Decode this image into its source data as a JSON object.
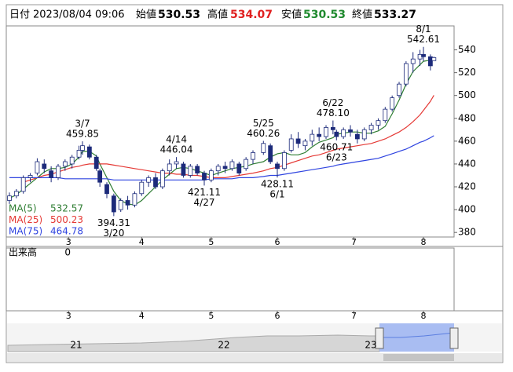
{
  "header": {
    "date_label": "日付",
    "datetime": "2023/08/04 09:06",
    "open_label": "始値",
    "high_label": "高値",
    "low_label": "安値",
    "close_label": "終値"
  },
  "chart_data": {
    "type": "candlestick",
    "x": [
      0,
      2,
      4,
      6,
      8,
      10,
      12,
      14,
      16,
      18,
      20,
      21,
      23,
      25,
      26,
      28,
      30,
      32,
      34,
      36,
      38,
      40,
      42,
      44,
      46,
      48,
      50,
      52,
      54,
      56,
      58,
      60,
      62,
      64,
      66,
      68,
      70,
      73,
      75,
      77,
      79,
      81,
      83,
      85,
      87,
      89,
      91,
      93,
      94,
      96,
      98,
      100,
      102,
      104,
      106,
      108,
      110,
      112,
      114,
      116,
      118,
      119,
      121,
      122
    ],
    "open": [
      408,
      412,
      416,
      428,
      432,
      440,
      434,
      428,
      438,
      440,
      446,
      452,
      455,
      446,
      434,
      422,
      412,
      400,
      408,
      404,
      414,
      424,
      428,
      420,
      434,
      440,
      440,
      430,
      438,
      432,
      426,
      434,
      438,
      436,
      440,
      436,
      444,
      450,
      456,
      440,
      436,
      452,
      462,
      456,
      460,
      466,
      464,
      472,
      468,
      464,
      470,
      466,
      462,
      470,
      474,
      478,
      488,
      500,
      510,
      528,
      532,
      536,
      534,
      530.53
    ],
    "high": [
      415,
      418,
      430,
      432,
      445,
      444,
      438,
      440,
      444,
      448,
      456,
      459.85,
      457,
      448,
      436,
      424,
      414,
      410,
      412,
      416,
      426,
      430,
      432,
      436,
      444,
      446.04,
      442,
      440,
      440,
      434,
      436,
      440,
      442,
      444,
      442,
      446,
      452,
      460.26,
      458,
      442,
      452,
      466,
      468,
      462,
      470,
      472,
      474,
      478.1,
      470,
      472,
      474,
      470,
      472,
      476,
      480,
      490,
      500,
      512,
      530,
      538,
      540,
      542.61,
      536,
      534.07
    ],
    "low": [
      405,
      410,
      414,
      424,
      430,
      432,
      424,
      426,
      434,
      436,
      444,
      448,
      444,
      434,
      420,
      410,
      394.31,
      398,
      400,
      402,
      412,
      420,
      418,
      418,
      430,
      436,
      428,
      428,
      430,
      421.11,
      424,
      430,
      432,
      434,
      430,
      434,
      440,
      448,
      440,
      428.11,
      434,
      450,
      454,
      452,
      456,
      460,
      462,
      466,
      460.71,
      462,
      464,
      458,
      460,
      466,
      470,
      476,
      486,
      498,
      508,
      520,
      526,
      530,
      522,
      530.53
    ],
    "close": [
      412,
      416,
      428,
      430,
      442,
      436,
      428,
      438,
      442,
      446,
      452,
      456,
      446,
      436,
      424,
      414,
      398,
      408,
      404,
      414,
      424,
      428,
      420,
      434,
      440,
      442,
      430,
      438,
      432,
      426,
      434,
      438,
      436,
      442,
      432,
      444,
      450,
      458,
      442,
      436,
      450,
      462,
      458,
      460,
      466,
      464,
      472,
      470,
      464,
      470,
      468,
      462,
      470,
      474,
      478,
      488,
      498,
      510,
      528,
      532,
      536,
      534,
      526,
      533.27
    ],
    "up_color": "#ffffff",
    "down_color": "#1c2a7a",
    "edge_color": "#1c2a7a",
    "series": [
      {
        "name": "MA(5)",
        "color": "#2e7d32",
        "values": [
          410,
          413,
          418,
          423,
          428,
          433,
          436,
          436,
          437,
          440,
          446,
          451,
          451,
          447,
          440,
          428,
          416,
          408,
          405,
          404,
          408,
          414,
          420,
          426,
          431,
          436,
          437,
          436,
          434,
          432,
          430,
          432,
          434,
          436,
          437,
          438,
          440,
          442,
          446,
          449,
          450,
          448,
          448,
          450,
          455,
          459,
          461,
          463,
          466,
          467,
          468,
          468,
          467,
          467,
          469,
          473,
          484,
          496,
          510,
          521,
          527,
          530,
          531,
          532.57
        ]
      },
      {
        "name": "MA(25)",
        "color": "#e53935",
        "values": [
          null,
          null,
          424,
          426,
          428,
          430,
          431,
          433,
          435,
          437,
          438,
          439,
          440,
          440,
          440,
          440,
          439,
          438,
          437,
          436,
          435,
          434,
          433,
          432,
          432,
          431,
          431,
          430,
          430,
          429,
          428,
          428,
          428,
          429,
          430,
          431,
          432,
          434,
          436,
          437,
          439,
          441,
          443,
          445,
          447,
          448,
          450,
          452,
          453,
          454,
          455,
          456,
          457,
          458,
          460,
          462,
          465,
          468,
          472,
          477,
          483,
          487,
          495,
          500.23
        ]
      },
      {
        "name": "MA(75)",
        "color": "#2f44e0",
        "values": [
          428,
          428,
          428,
          428,
          428,
          428,
          428,
          428,
          427,
          427,
          427,
          427,
          427,
          427,
          427,
          427,
          426,
          426,
          426,
          426,
          426,
          426,
          426,
          426,
          426,
          426,
          426,
          426,
          426,
          426,
          427,
          427,
          427,
          427,
          428,
          428,
          428,
          429,
          430,
          430,
          431,
          432,
          433,
          434,
          435,
          436,
          437,
          438,
          439,
          440,
          441,
          442,
          443,
          444,
          445,
          447,
          449,
          451,
          453,
          456,
          459,
          460,
          463,
          464.78
        ]
      }
    ],
    "annotations": [
      {
        "date": "3/7",
        "value": 459.85,
        "x": 21,
        "pos": "above"
      },
      {
        "date": "3/20",
        "value": 394.31,
        "x": 30,
        "pos": "below"
      },
      {
        "date": "4/14",
        "value": 446.04,
        "x": 48,
        "pos": "above"
      },
      {
        "date": "4/27",
        "value": 421.11,
        "x": 56,
        "pos": "below"
      },
      {
        "date": "5/25",
        "value": 460.26,
        "x": 73,
        "pos": "above"
      },
      {
        "date": "6/1",
        "value": 428.11,
        "x": 77,
        "pos": "below"
      },
      {
        "date": "6/22",
        "value": 478.1,
        "label": "478.10",
        "x": 93,
        "pos": "above"
      },
      {
        "date": "6/23",
        "value": 460.71,
        "x": 94,
        "pos": "below"
      },
      {
        "date": "8/1",
        "value": 542.61,
        "x": 119,
        "pos": "above"
      }
    ],
    "xlim": [
      -0.9,
      127.8
    ],
    "xticks": [
      {
        "value": 17,
        "label": "3"
      },
      {
        "value": 38,
        "label": "4"
      },
      {
        "value": 58,
        "label": "5"
      },
      {
        "value": 77,
        "label": "6"
      },
      {
        "value": 99,
        "label": "7"
      },
      {
        "value": 119,
        "label": "8"
      }
    ],
    "ylim": [
      376,
      561
    ],
    "yticks": [
      380,
      400,
      420,
      440,
      460,
      480,
      500,
      520,
      540
    ]
  },
  "volume_panel": {
    "label": "出来高",
    "value": 0
  },
  "navigator": {
    "labels": [
      "21",
      "22",
      "23"
    ]
  }
}
